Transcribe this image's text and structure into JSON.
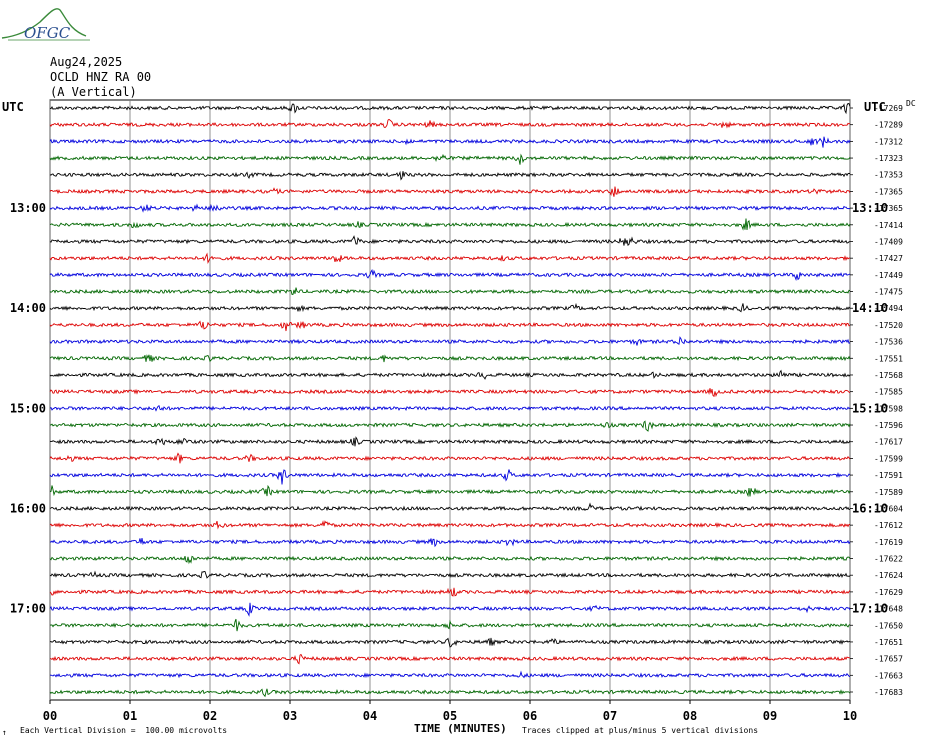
{
  "logo": {
    "text": "OFGC"
  },
  "header": {
    "date": "Aug24,2025",
    "station": "OCLD HNZ RA 00",
    "component": "(A Vertical)"
  },
  "left_tz": "UTC",
  "right_tz": "UTC",
  "offset_top_label": "DC",
  "colors": [
    "#000000",
    "#dd0000",
    "#0000dd",
    "#006600"
  ],
  "footer": {
    "scale": "Each Vertical Division =  100.00 microvolts",
    "xaxis_title": "TIME (MINUTES)",
    "clip_note": "Traces clipped at plus/minus 5 vertical divisions",
    "tick": "↑"
  },
  "chart_data": {
    "type": "line",
    "title": "",
    "xlabel": "TIME (MINUTES)",
    "xlim": [
      0,
      10
    ],
    "x_ticks": [
      "00",
      "01",
      "02",
      "03",
      "04",
      "05",
      "06",
      "07",
      "08",
      "09",
      "10"
    ],
    "grid": true,
    "num_traces": 36,
    "left_hour_labels": [
      {
        "trace": 6,
        "text": "13:00"
      },
      {
        "trace": 12,
        "text": "14:00"
      },
      {
        "trace": 18,
        "text": "15:00"
      },
      {
        "trace": 24,
        "text": "16:00"
      },
      {
        "trace": 30,
        "text": "17:00"
      }
    ],
    "right_hour_labels": [
      {
        "trace": 6,
        "text": "13:10"
      },
      {
        "trace": 12,
        "text": "14:10"
      },
      {
        "trace": 18,
        "text": "15:10"
      },
      {
        "trace": 24,
        "text": "16:10"
      },
      {
        "trace": 30,
        "text": "17:10"
      }
    ],
    "dc_offsets": [
      "-17269",
      "-17289",
      "-17312",
      "-17323",
      "-17353",
      "-17365",
      "-17365",
      "-17414",
      "-17409",
      "-17427",
      "-17449",
      "-17475",
      "-17494",
      "-17520",
      "-17536",
      "-17551",
      "-17568",
      "-17585",
      "-17598",
      "-17596",
      "-17617",
      "-17599",
      "-17591",
      "-17589",
      "-17604",
      "-17612",
      "-17619",
      "-17622",
      "-17624",
      "-17629",
      "-17648",
      "-17650",
      "-17651",
      "-17657",
      "-17663",
      "-17683"
    ],
    "units": "microvolts",
    "vertical_division": 100
  }
}
